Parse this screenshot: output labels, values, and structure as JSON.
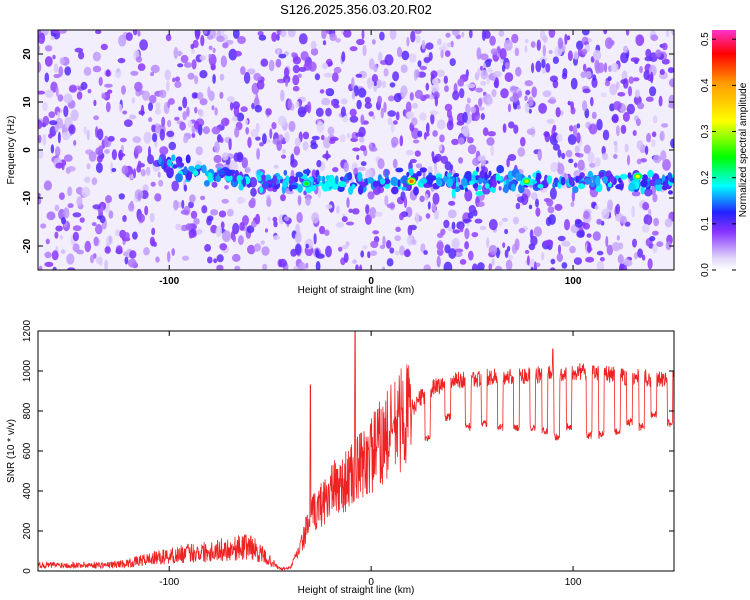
{
  "chart_data": [
    {
      "type": "heatmap",
      "title": "S126.2025.356.03.20.R02",
      "xlabel": "Height of straight line (km)",
      "ylabel": "Frequency (Hz)",
      "xlim": [
        -165,
        150
      ],
      "ylim": [
        -25,
        25
      ],
      "x_ticks": [
        -100,
        0,
        100
      ],
      "y_ticks": [
        -20,
        -10,
        0,
        10,
        20
      ],
      "signal_band_center_hz": -6.5,
      "signal_band_start_km": -105,
      "hotspots": [
        {
          "x": -32,
          "y": -7,
          "amplitude": 0.25
        },
        {
          "x": 20,
          "y": -6.5,
          "amplitude": 0.4
        },
        {
          "x": 77,
          "y": -6.5,
          "amplitude": 0.3
        },
        {
          "x": 132,
          "y": -5.5,
          "amplitude": 0.32
        }
      ],
      "colorbar": {
        "label": "Normalized spectral amplitude",
        "ticks": [
          0.0,
          0.1,
          0.2,
          0.3,
          0.4,
          0.5
        ],
        "tick_labels": [
          "0.0",
          "0.1",
          "0.2",
          "0.3",
          "0.4",
          "0.5"
        ],
        "range": [
          0,
          0.52
        ]
      }
    },
    {
      "type": "line",
      "xlabel": "Height of straight line (km)",
      "ylabel": "SNR (10 * v/v)",
      "xlim": [
        -165,
        150
      ],
      "ylim": [
        0,
        1200
      ],
      "x_ticks": [
        -100,
        0,
        100
      ],
      "y_ticks": [
        0,
        200,
        400,
        600,
        800,
        1000,
        1200
      ],
      "series": [
        {
          "name": "SNR",
          "color": "#ee2222",
          "envelope_x": [
            -165,
            -130,
            -120,
            -110,
            -100,
            -90,
            -80,
            -70,
            -60,
            -50,
            -45,
            -40,
            -35,
            -30,
            -25,
            -20,
            -15,
            -10,
            -5,
            0,
            5,
            10,
            15,
            20,
            25,
            30,
            40,
            50,
            60,
            70,
            80,
            90,
            100,
            110,
            120,
            130,
            140,
            150
          ],
          "envelope_y": [
            30,
            30,
            40,
            60,
            75,
            90,
            100,
            110,
            125,
            50,
            10,
            15,
            120,
            270,
            330,
            400,
            430,
            470,
            520,
            580,
            640,
            700,
            760,
            810,
            870,
            910,
            950,
            960,
            970,
            975,
            980,
            985,
            1000,
            990,
            980,
            970,
            965,
            960
          ],
          "spikes": [
            {
              "x": -30,
              "y": 930
            },
            {
              "x": -8,
              "y": 1200
            },
            {
              "x": 90,
              "y": 1110
            }
          ],
          "dip_x": [
            28,
            38,
            48,
            56,
            64,
            72,
            80,
            86,
            92,
            98,
            108,
            114,
            122,
            128,
            134,
            140,
            148
          ],
          "dip_y": [
            640,
            750,
            700,
            720,
            700,
            700,
            700,
            680,
            650,
            700,
            660,
            660,
            680,
            720,
            700,
            760,
            720
          ]
        }
      ]
    }
  ]
}
